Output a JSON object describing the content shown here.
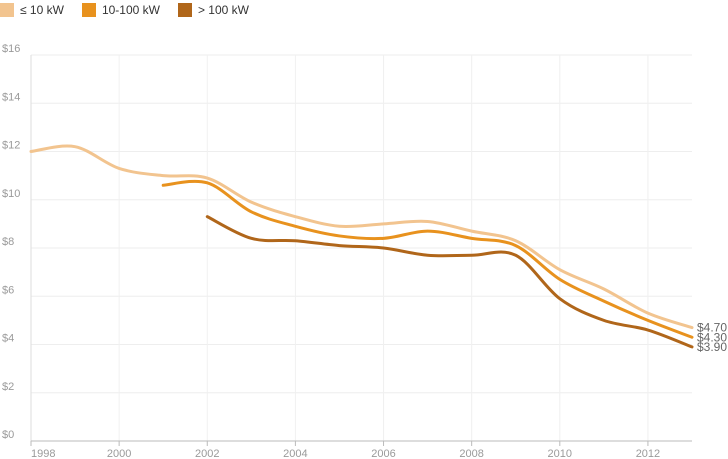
{
  "chart_data": {
    "type": "line",
    "title": "",
    "xlabel": "",
    "ylabel": "",
    "xlim": [
      1998,
      2013
    ],
    "ylim": [
      0,
      16
    ],
    "x_ticks": [
      1998,
      2000,
      2002,
      2004,
      2006,
      2008,
      2010,
      2012
    ],
    "x_tick_labels": [
      "1998",
      "2000",
      "2002",
      "2004",
      "2006",
      "2008",
      "2010",
      "2012"
    ],
    "y_ticks": [
      0,
      2,
      4,
      6,
      8,
      10,
      12,
      14,
      16
    ],
    "y_tick_labels": [
      "$0",
      "$2",
      "$4",
      "$6",
      "$8",
      "$10",
      "$12",
      "$14",
      "$16"
    ],
    "grid": true,
    "legend_position": "top-left",
    "series": [
      {
        "name": "≤ 10 kW",
        "color": "#f2c48f",
        "x": [
          1998,
          1999,
          2000,
          2001,
          2002,
          2003,
          2004,
          2005,
          2006,
          2007,
          2008,
          2009,
          2010,
          2011,
          2012,
          2013
        ],
        "values": [
          12.0,
          12.2,
          11.3,
          11.0,
          10.9,
          9.9,
          9.3,
          8.9,
          9.0,
          9.1,
          8.7,
          8.3,
          7.1,
          6.3,
          5.3,
          4.7
        ],
        "end_label": "$4.70"
      },
      {
        "name": "10-100 kW",
        "color": "#e8921e",
        "x": [
          2001,
          2002,
          2003,
          2004,
          2005,
          2006,
          2007,
          2008,
          2009,
          2010,
          2011,
          2012,
          2013
        ],
        "values": [
          10.6,
          10.7,
          9.5,
          8.9,
          8.5,
          8.4,
          8.7,
          8.4,
          8.1,
          6.7,
          5.8,
          5.0,
          4.3
        ],
        "end_label": "$4.30"
      },
      {
        "name": "> 100 kW",
        "color": "#b0661a",
        "x": [
          2002,
          2003,
          2004,
          2005,
          2006,
          2007,
          2008,
          2009,
          2010,
          2011,
          2012,
          2013
        ],
        "values": [
          9.3,
          8.4,
          8.3,
          8.1,
          8.0,
          7.7,
          7.7,
          7.7,
          5.9,
          5.0,
          4.6,
          3.9
        ],
        "end_label": "$3.90"
      }
    ]
  }
}
